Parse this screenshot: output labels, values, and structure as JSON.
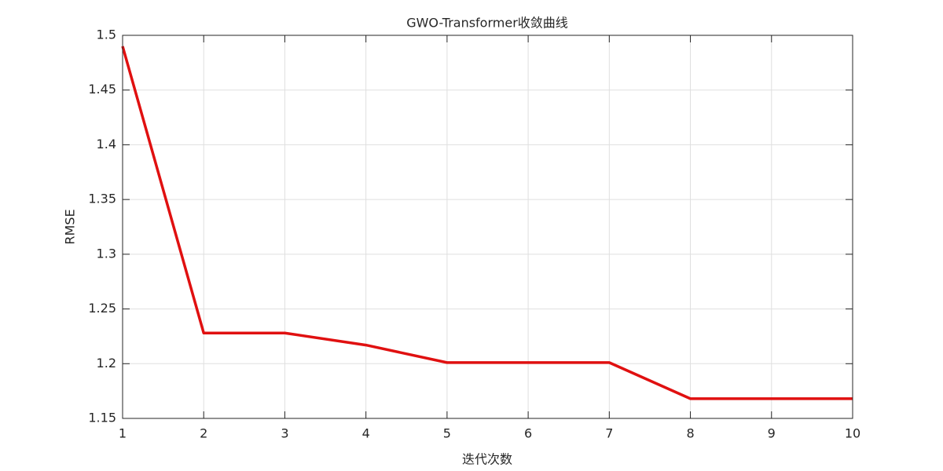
{
  "chart_data": {
    "type": "line",
    "title": "GWO-Transformer收敛曲线",
    "x_label": "迭代次数",
    "y_label": "RMSE",
    "x": [
      1,
      2,
      3,
      4,
      5,
      6,
      7,
      8,
      9,
      10
    ],
    "series": [
      {
        "color": "#e01010",
        "values": [
          1.49,
          1.228,
          1.228,
          1.217,
          1.201,
          1.201,
          1.201,
          1.168,
          1.168,
          1.168
        ]
      }
    ],
    "xlim": [
      1,
      10
    ],
    "xticks": [
      1,
      2,
      3,
      4,
      5,
      6,
      7,
      8,
      9,
      10
    ],
    "ylim": [
      1.15,
      1.5
    ],
    "yticks": [
      1.15,
      1.2,
      1.25,
      1.3,
      1.35,
      1.4,
      1.45,
      1.5
    ],
    "grid": true
  }
}
